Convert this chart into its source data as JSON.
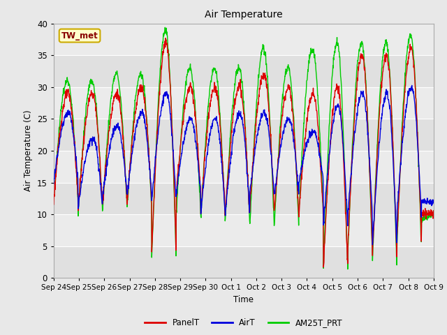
{
  "title": "Air Temperature",
  "ylabel": "Air Temperature (C)",
  "xlabel": "Time",
  "annotation_text": "TW_met",
  "annotation_bg": "#ffffcc",
  "annotation_border": "#ccaa00",
  "annotation_text_color": "#880000",
  "ylim": [
    0,
    40
  ],
  "yticks": [
    0,
    5,
    10,
    15,
    20,
    25,
    30,
    35,
    40
  ],
  "xtick_labels": [
    "Sep 24",
    "Sep 25",
    "Sep 26",
    "Sep 27",
    "Sep 28",
    "Sep 29",
    "Sep 30",
    "Oct 1",
    "Oct 2",
    "Oct 3",
    "Oct 4",
    "Oct 5",
    "Oct 6",
    "Oct 7",
    "Oct 8",
    "Oct 9"
  ],
  "bg_color": "#e8e8e8",
  "plot_bg_color": "#e8e8e8",
  "grid_color": "#ffffff",
  "line_colors": {
    "PanelT": "#dd0000",
    "AirT": "#0000dd",
    "AM25T_PRT": "#00cc00"
  },
  "line_widths": {
    "PanelT": 1.0,
    "AirT": 1.0,
    "AM25T_PRT": 1.0
  },
  "legend_labels": [
    "PanelT",
    "AirT",
    "AM25T_PRT"
  ],
  "day_mins_panel": [
    12,
    11,
    12,
    12,
    4,
    13,
    10,
    10,
    11,
    10,
    10,
    1,
    5,
    3,
    6,
    10
  ],
  "day_maxs_panel": [
    29,
    29,
    29,
    30,
    37,
    30,
    30,
    30,
    32,
    30,
    29,
    30,
    35,
    35,
    36,
    10
  ],
  "day_mins_air": [
    15,
    11,
    13,
    13,
    12,
    13,
    10,
    10,
    13,
    13,
    15,
    8,
    10,
    5,
    10,
    12
  ],
  "day_maxs_air": [
    26,
    22,
    24,
    26,
    29,
    25,
    25,
    26,
    26,
    25,
    23,
    27,
    29,
    29,
    30,
    12
  ],
  "day_mins_am25": [
    12,
    10,
    11,
    11,
    3,
    10,
    9,
    9,
    8,
    8,
    10,
    1,
    4,
    2,
    5,
    9
  ],
  "day_maxs_am25": [
    31,
    31,
    32,
    32,
    39,
    33,
    33,
    33,
    36,
    33,
    36,
    37,
    37,
    37,
    38,
    10
  ]
}
